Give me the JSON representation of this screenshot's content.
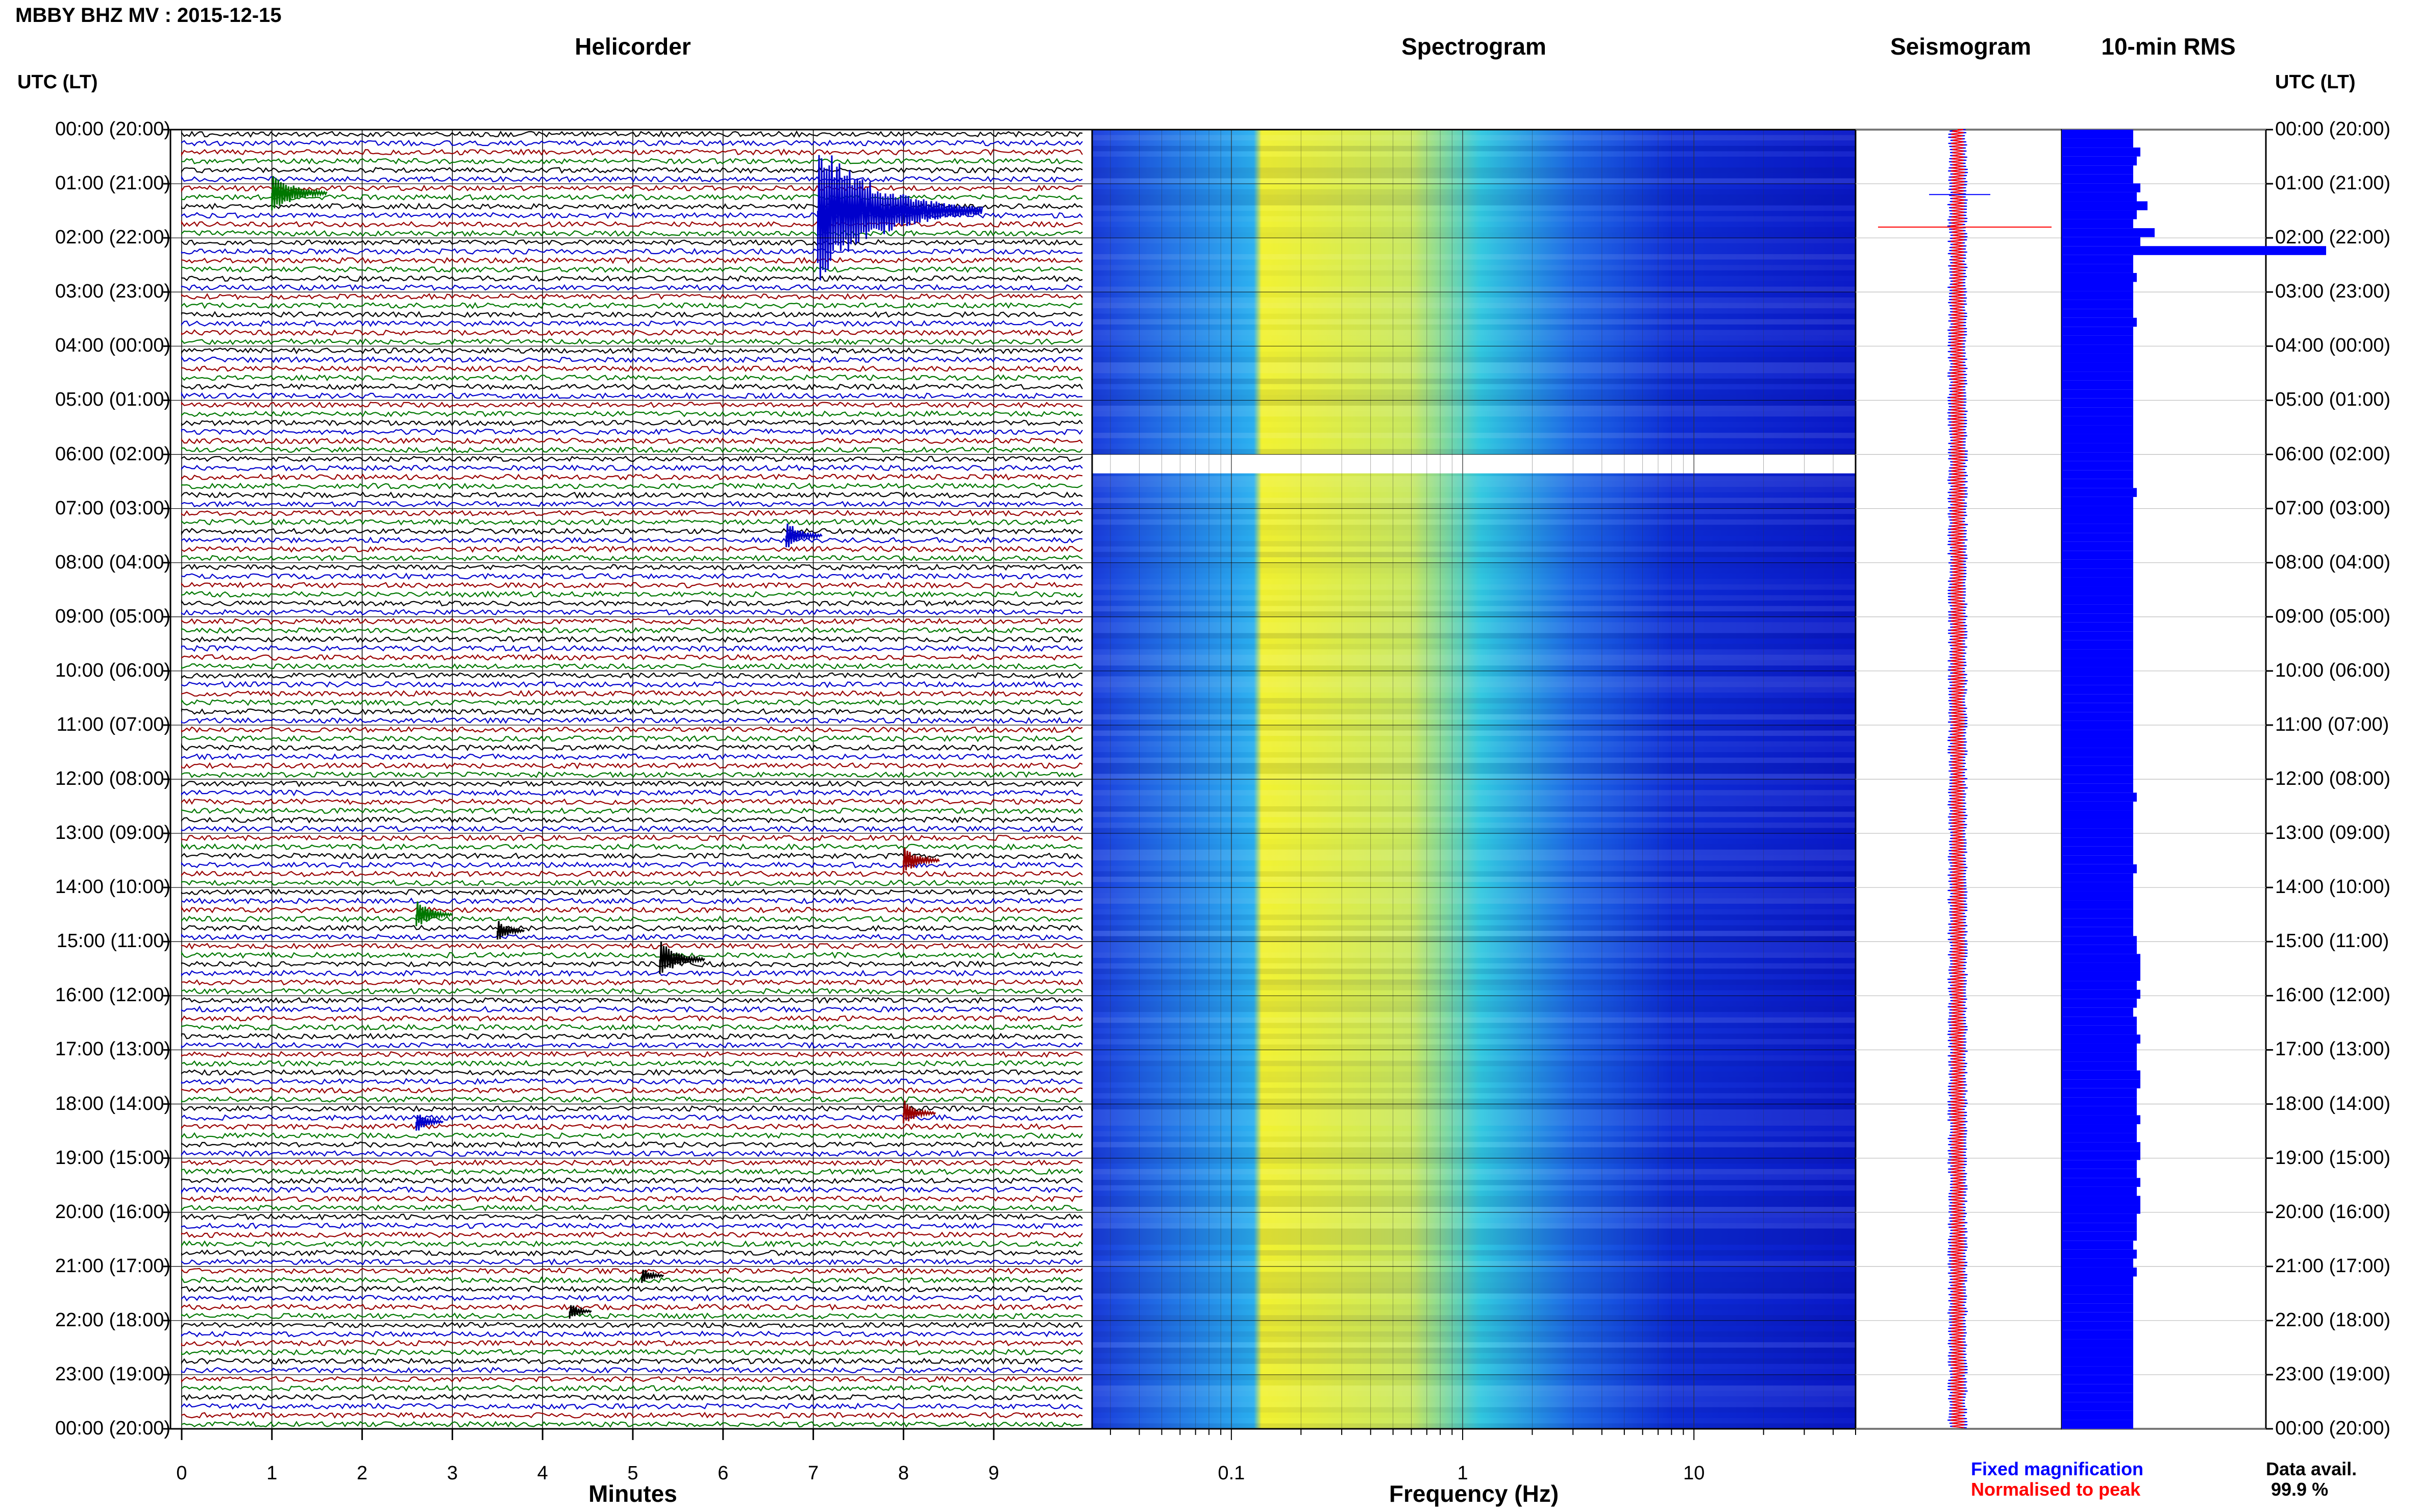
{
  "figure_title": "MBBY BHZ MV : 2015-12-15",
  "panels": {
    "helicorder": "Helicorder",
    "spectrogram": "Spectrogram",
    "seismogram": "Seismogram",
    "rms": "10-min RMS"
  },
  "utc_header_left": "UTC (LT)",
  "utc_header_right": "UTC (LT)",
  "hour_labels": [
    "00:00 (20:00)",
    "01:00 (21:00)",
    "02:00 (22:00)",
    "03:00 (23:00)",
    "04:00 (00:00)",
    "05:00 (01:00)",
    "06:00 (02:00)",
    "07:00 (03:00)",
    "08:00 (04:00)",
    "09:00 (05:00)",
    "10:00 (06:00)",
    "11:00 (07:00)",
    "12:00 (08:00)",
    "13:00 (09:00)",
    "14:00 (10:00)",
    "15:00 (11:00)",
    "16:00 (12:00)",
    "17:00 (13:00)",
    "18:00 (14:00)",
    "19:00 (15:00)",
    "20:00 (16:00)",
    "21:00 (17:00)",
    "22:00 (18:00)",
    "23:00 (19:00)",
    "00:00 (20:00)"
  ],
  "xaxis_helicorder": "Minutes",
  "xaxis_spectrogram": "Frequency (Hz)",
  "legend": {
    "fixed": "Fixed magnification",
    "normalised": "Normalised to peak",
    "fixed_color": "#0000ff",
    "normalised_color": "#ff0000"
  },
  "data_avail_label": "Data avail.",
  "data_avail_value": "99.9 %",
  "colors": {
    "trace_cycle": [
      "#000000",
      "#0000cc",
      "#990000",
      "#007700"
    ],
    "spectro_low": "#0b1dd8",
    "spectro_mid": "#1fd0e8",
    "spectro_high": "#f0f020",
    "rms_bar": "#0000ff"
  },
  "chart_data": [
    {
      "type": "line",
      "name_panel": "Helicorder",
      "xlabel": "Minutes",
      "x_ticks": [
        "0",
        "1",
        "2",
        "3",
        "4",
        "5",
        "6",
        "7",
        "8",
        "9"
      ],
      "xlim": [
        0,
        10
      ],
      "ylim_hours": [
        0,
        24
      ],
      "rows_per_hour": 6,
      "events": [
        {
          "hour": 1.17,
          "minute": 1.0,
          "amplitude": 1.2,
          "color": "#007700"
        },
        {
          "hour": 1.5,
          "minute": 7.05,
          "amplitude": 3.6,
          "color": "#0000cc"
        },
        {
          "hour": 7.5,
          "minute": 6.7,
          "amplitude": 0.8,
          "color": "#0000cc"
        },
        {
          "hour": 13.5,
          "minute": 8.0,
          "amplitude": 0.8,
          "color": "#990000"
        },
        {
          "hour": 14.5,
          "minute": 2.6,
          "amplitude": 0.8,
          "color": "#007700"
        },
        {
          "hour": 14.8,
          "minute": 3.5,
          "amplitude": 0.6,
          "color": "#000000"
        },
        {
          "hour": 15.33,
          "minute": 5.3,
          "amplitude": 1.0,
          "color": "#000000"
        },
        {
          "hour": 18.17,
          "minute": 8.0,
          "amplitude": 0.7,
          "color": "#990000"
        },
        {
          "hour": 18.33,
          "minute": 2.6,
          "amplitude": 0.6,
          "color": "#0000cc"
        },
        {
          "hour": 21.17,
          "minute": 5.1,
          "amplitude": 0.5,
          "color": "#000000"
        },
        {
          "hour": 21.83,
          "minute": 4.3,
          "amplitude": 0.5,
          "color": "#000000"
        }
      ]
    },
    {
      "type": "heatmap",
      "name_panel": "Spectrogram",
      "xlabel": "Frequency (Hz)",
      "x_scale": "log",
      "x_ticks": [
        "0.1",
        "1",
        "10"
      ],
      "xlim": [
        0.025,
        50
      ],
      "ylim_hours": [
        0,
        24
      ],
      "data_gap_hours": [
        6.0,
        6.35
      ],
      "peak_band_hz": [
        0.13,
        0.6
      ]
    },
    {
      "type": "line",
      "name_panel": "Seismogram",
      "series": [
        {
          "name": "Fixed magnification",
          "color": "#0000ff"
        },
        {
          "name": "Normalised to peak",
          "color": "#ff0000"
        }
      ],
      "spike_hours": [
        1.2,
        1.8
      ]
    },
    {
      "type": "bar",
      "name_panel": "10-min RMS",
      "orientation": "horizontal",
      "ylim_hours": [
        0,
        24
      ],
      "bin_minutes": 10,
      "values": [
        1.0,
        1.0,
        1.1,
        1.05,
        1.0,
        1.0,
        1.1,
        1.05,
        1.2,
        1.05,
        1.0,
        1.3,
        1.1,
        3.7,
        1.0,
        1.0,
        1.05,
        1.0,
        1.0,
        1.0,
        1.0,
        1.05,
        1.0,
        1.0,
        1.0,
        1.0,
        1.0,
        1.0,
        1.0,
        1.0,
        1.0,
        1.0,
        1.0,
        1.0,
        1.0,
        1.0,
        1.0,
        1.0,
        1.0,
        1.0,
        1.05,
        1.0,
        1.0,
        1.0,
        1.0,
        1.0,
        1.0,
        1.0,
        1.0,
        1.0,
        1.0,
        1.0,
        1.0,
        1.0,
        1.0,
        1.0,
        1.0,
        1.0,
        1.0,
        1.0,
        1.0,
        1.0,
        1.0,
        1.0,
        1.0,
        1.0,
        1.0,
        1.0,
        1.0,
        1.0,
        1.0,
        1.0,
        1.0,
        1.0,
        1.05,
        1.0,
        1.0,
        1.0,
        1.0,
        1.0,
        1.0,
        1.0,
        1.05,
        1.0,
        1.0,
        1.0,
        1.0,
        1.0,
        1.0,
        1.0,
        1.05,
        1.05,
        1.1,
        1.1,
        1.1,
        1.05,
        1.1,
        1.05,
        1.0,
        1.05,
        1.05,
        1.1,
        1.05,
        1.05,
        1.05,
        1.1,
        1.1,
        1.05,
        1.05,
        1.05,
        1.1,
        1.05,
        1.05,
        1.1,
        1.1,
        1.05,
        1.05,
        1.1,
        1.05,
        1.1,
        1.1,
        1.05,
        1.05,
        1.05,
        1.0,
        1.05,
        1.0,
        1.05,
        1.0,
        1.0,
        1.0,
        1.0,
        1.0,
        1.0,
        1.0,
        1.0,
        1.0,
        1.0,
        1.0,
        1.0,
        1.0,
        1.0,
        1.0,
        1.0,
        1.0
      ]
    }
  ]
}
